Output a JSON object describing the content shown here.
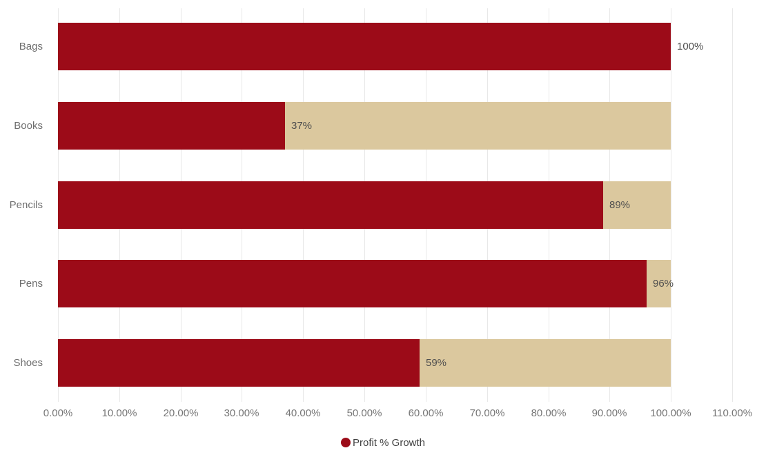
{
  "chart_data": {
    "type": "bar",
    "orientation": "horizontal",
    "categories": [
      "Bags",
      "Books",
      "Pencils",
      "Pens",
      "Shoes"
    ],
    "series": [
      {
        "name": "Profit % Growth",
        "values": [
          100,
          37,
          89,
          96,
          59
        ]
      }
    ],
    "data_labels": [
      "100%",
      "37%",
      "89%",
      "96%",
      "59%"
    ],
    "remainder_track_max": 100,
    "xlim": [
      0,
      110
    ],
    "x_ticks": [
      "0.00%",
      "10.00%",
      "20.00%",
      "30.00%",
      "40.00%",
      "50.00%",
      "60.00%",
      "70.00%",
      "80.00%",
      "90.00%",
      "100.00%",
      "110.00%"
    ],
    "grid": "vertical-only",
    "legend": {
      "position": "bottom-center",
      "label": "Profit % Growth"
    },
    "colors": {
      "bar": "#9C0B18",
      "remainder": "#DBC89E",
      "gridline": "#E8E8E8",
      "tick_text": "#767676",
      "category_text": "#6E6E6E",
      "data_label_text": "#4E4E4E",
      "legend_text": "#3F3F3F",
      "background": "#FFFFFF"
    }
  }
}
